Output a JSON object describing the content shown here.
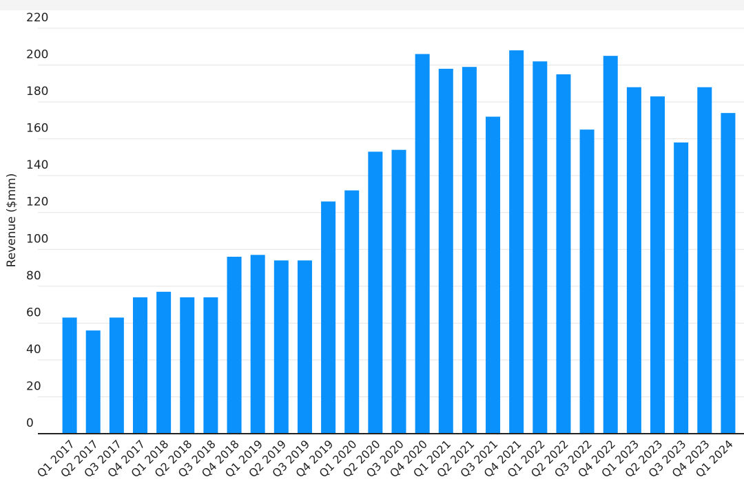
{
  "chart_data": {
    "type": "bar",
    "y_label": "Revenue ($mm)",
    "categories": [
      "Q1 2017",
      "Q2 2017",
      "Q3 2017",
      "Q4 2017",
      "Q1 2018",
      "Q2 2018",
      "Q3 2018",
      "Q4 2018",
      "Q1 2019",
      "Q2 2019",
      "Q3 2019",
      "Q4 2019",
      "Q1 2020",
      "Q2 2020",
      "Q3 2020",
      "Q4 2020",
      "Q1 2021",
      "Q2 2021",
      "Q3 2021",
      "Q4 2021",
      "Q1 2022",
      "Q2 2022",
      "Q3 2022",
      "Q4 2022",
      "Q1 2023",
      "Q2 2023",
      "Q3 2023",
      "Q4 2023",
      "Q1 2024"
    ],
    "values": [
      63,
      56,
      63,
      74,
      77,
      74,
      74,
      96,
      97,
      94,
      94,
      126,
      132,
      153,
      154,
      206,
      198,
      199,
      172,
      208,
      202,
      195,
      165,
      205,
      188,
      183,
      158,
      188,
      174
    ],
    "color": "#0a91fb",
    "ylim": [
      0,
      220
    ],
    "yticks": [
      0,
      20,
      40,
      60,
      80,
      100,
      120,
      140,
      160,
      180,
      200,
      220
    ],
    "grid": true
  }
}
